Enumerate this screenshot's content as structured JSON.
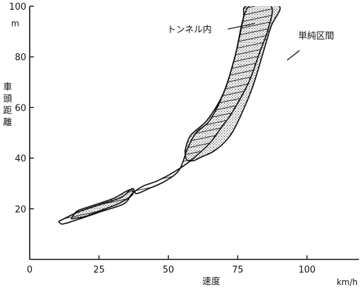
{
  "chart_data": {
    "type": "area",
    "xlabel": "速度",
    "xunit": "km/h",
    "ylabel": "車頭距離",
    "yunit": "m",
    "xlim": [
      0,
      110
    ],
    "ylim": [
      0,
      100
    ],
    "xticks": [
      0,
      25,
      50,
      75,
      100
    ],
    "yticks": [
      20,
      40,
      60,
      80,
      100
    ],
    "grid": false,
    "legend": "none",
    "colors": {
      "ink": "#111111",
      "paper": "#ffffff"
    },
    "series": [
      {
        "name": "トンネル内",
        "fill": "hatched",
        "outline": [
          [
            10.5,
            15
          ],
          [
            17,
            18.5
          ],
          [
            25,
            21.5
          ],
          [
            33,
            24.5
          ],
          [
            37,
            28
          ],
          [
            38.5,
            26
          ],
          [
            43,
            28
          ],
          [
            49,
            31
          ],
          [
            54,
            35.5
          ],
          [
            57,
            44
          ],
          [
            60,
            50
          ],
          [
            65,
            55
          ],
          [
            70,
            66
          ],
          [
            74,
            80
          ],
          [
            77,
            95
          ],
          [
            78,
            100
          ],
          [
            87,
            100
          ],
          [
            86,
            91
          ],
          [
            83,
            82
          ],
          [
            79,
            70
          ],
          [
            73,
            58
          ],
          [
            69,
            52
          ],
          [
            65,
            46
          ],
          [
            58,
            39
          ],
          [
            52,
            34.5
          ],
          [
            46,
            31
          ],
          [
            41,
            29
          ],
          [
            37,
            26
          ],
          [
            34,
            22
          ],
          [
            26,
            19
          ],
          [
            18,
            16
          ],
          [
            12,
            14
          ],
          [
            10.5,
            15
          ]
        ]
      },
      {
        "name": "単純区間",
        "fill": "dotted",
        "outline": [
          [
            56,
            43
          ],
          [
            58,
            49
          ],
          [
            64,
            55
          ],
          [
            70,
            66
          ],
          [
            74,
            80
          ],
          [
            79,
            100
          ],
          [
            90,
            100
          ],
          [
            87,
            92
          ],
          [
            84,
            81
          ],
          [
            80,
            67
          ],
          [
            74,
            52
          ],
          [
            70,
            46
          ],
          [
            66,
            42.5
          ],
          [
            62,
            40.5
          ],
          [
            59,
            39
          ],
          [
            56.5,
            39.5
          ],
          [
            56,
            43
          ]
        ]
      },
      {
        "name": "",
        "fill": "dotted",
        "outline": [
          [
            15,
            16
          ],
          [
            17,
            19
          ],
          [
            22,
            21
          ],
          [
            30,
            24
          ],
          [
            36,
            27.5
          ],
          [
            37,
            25.5
          ],
          [
            32,
            22
          ],
          [
            26,
            19.5
          ],
          [
            20,
            17
          ],
          [
            15,
            16
          ]
        ]
      }
    ],
    "annotations": [
      {
        "text": "トンネル内",
        "points_to": [
          76,
          95
        ]
      },
      {
        "text": "単純区間",
        "points_to": [
          85,
          79
        ]
      }
    ]
  }
}
